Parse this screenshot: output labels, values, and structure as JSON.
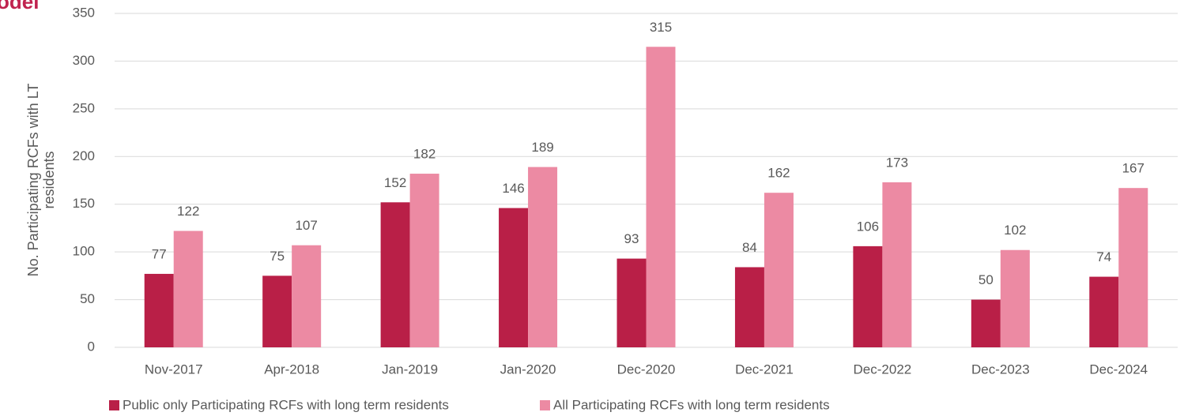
{
  "chart_data": {
    "type": "bar",
    "title": "odel",
    "y_axis_label": "No. Participating RCFs with LT residents",
    "categories": [
      "Nov-2017",
      "Apr-2018",
      "Jan-2019",
      "Jan-2020",
      "Dec-2020",
      "Dec-2021",
      "Dec-2022",
      "Dec-2023",
      "Dec-2024"
    ],
    "series": [
      {
        "name": "Public only Participating RCFs with long term residents",
        "color": "#b91f47",
        "values": [
          77,
          75,
          152,
          146,
          93,
          84,
          106,
          50,
          74
        ]
      },
      {
        "name": "All Participating RCFs with long term residents",
        "color": "#ec8aa3",
        "values": [
          122,
          107,
          182,
          189,
          315,
          162,
          173,
          102,
          167
        ]
      }
    ],
    "ylim": [
      0,
      350
    ],
    "yticks": [
      0,
      50,
      100,
      150,
      200,
      250,
      300,
      350
    ],
    "grid": true,
    "legend": "bottom"
  }
}
